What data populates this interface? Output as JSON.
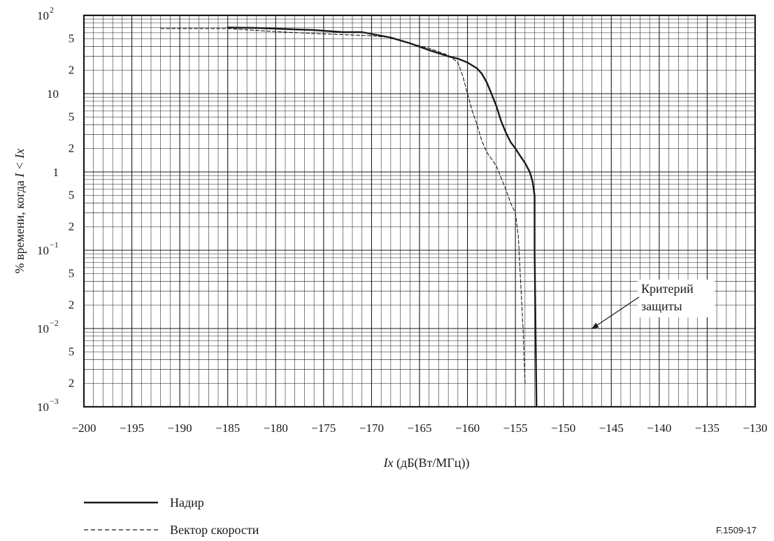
{
  "chart_data": {
    "type": "line",
    "xlabel_italic": "Ix",
    "xlabel_rest": " (дБ(Вт/МГц))",
    "ylabel_prefix": "% времени, когда ",
    "ylabel_italic": "I < Ix",
    "xlim": [
      -200,
      -130
    ],
    "ylim": [
      0.001,
      100
    ],
    "yscale": "log",
    "grid": true,
    "x_ticks": [
      -200,
      -195,
      -190,
      -185,
      -180,
      -175,
      -170,
      -165,
      -160,
      -155,
      -150,
      -145,
      -140,
      -135,
      -130
    ],
    "x_tick_labels": [
      "−200",
      "−195",
      "−190",
      "−185",
      "−180",
      "−175",
      "−170",
      "−165",
      "−160",
      "−155",
      "−150",
      "−145",
      "−140",
      "−135",
      "−130"
    ],
    "y_major_ticks": [
      {
        "value": 100,
        "base": "10",
        "exp": "2"
      },
      {
        "value": 10,
        "base": "10",
        "exp": ""
      },
      {
        "value": 1,
        "base": "1",
        "exp": ""
      },
      {
        "value": 0.1,
        "base": "10",
        "exp": "−1"
      },
      {
        "value": 0.01,
        "base": "10",
        "exp": "−2"
      },
      {
        "value": 0.001,
        "base": "10",
        "exp": "−3"
      }
    ],
    "y_minor_labels": [
      {
        "value": 50,
        "label": "5"
      },
      {
        "value": 20,
        "label": "2"
      },
      {
        "value": 5,
        "label": "5"
      },
      {
        "value": 2,
        "label": "2"
      },
      {
        "value": 0.5,
        "label": "5"
      },
      {
        "value": 0.2,
        "label": "2"
      },
      {
        "value": 0.05,
        "label": "5"
      },
      {
        "value": 0.02,
        "label": "2"
      },
      {
        "value": 0.005,
        "label": "5"
      },
      {
        "value": 0.002,
        "label": "2"
      }
    ],
    "series": [
      {
        "name": "Надир",
        "style": "solid",
        "x": [
          -185,
          -182,
          -179,
          -176,
          -173,
          -171,
          -170,
          -168,
          -166,
          -164,
          -162,
          -161,
          -160,
          -159,
          -158.5,
          -158,
          -157.5,
          -157,
          -156.5,
          -156,
          -155.5,
          -155,
          -154.5,
          -154,
          -153.5,
          -153.2,
          -153,
          -153,
          -152.8
        ],
        "y": [
          70,
          69,
          67,
          65,
          61,
          61,
          58,
          52,
          44,
          36,
          30,
          28,
          25,
          21,
          18,
          14,
          10,
          7,
          4.5,
          3.2,
          2.4,
          2.0,
          1.6,
          1.3,
          1.0,
          0.75,
          0.5,
          0.1,
          0.001
        ]
      },
      {
        "name": "Вектор скорости",
        "style": "dashed",
        "x": [
          -192,
          -185,
          -180,
          -175,
          -170,
          -168,
          -166,
          -164,
          -162,
          -161,
          -160.5,
          -160,
          -159.5,
          -159,
          -158.5,
          -158,
          -157,
          -156,
          -155.5,
          -155,
          -154.7,
          -154.5,
          -154.2,
          -154
        ],
        "y": [
          68,
          68,
          62,
          58,
          55,
          52,
          44,
          38,
          31,
          25,
          17,
          10,
          6,
          4,
          2.5,
          1.8,
          1.2,
          0.6,
          0.4,
          0.3,
          0.15,
          0.05,
          0.01,
          0.002
        ]
      }
    ],
    "annotation": {
      "line1": "Критерий",
      "line2": "защиты",
      "x": -147,
      "arrow_to_y": 0.01
    },
    "legend_placement": "bottom-left"
  },
  "figure_id": "F.1509-17",
  "colors": {
    "line": "#1a1a1a",
    "grid": "#1a1a1a",
    "background": "#ffffff"
  }
}
